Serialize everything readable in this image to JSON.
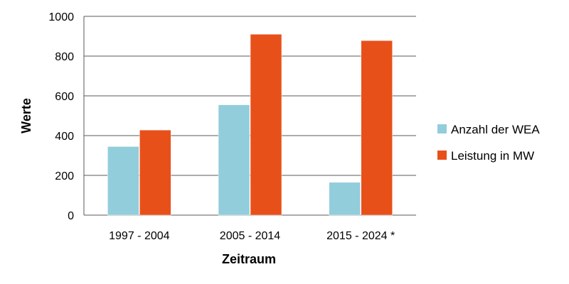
{
  "chart_data": {
    "type": "bar",
    "categories": [
      "1997 - 2004",
      "2005 - 2014",
      "2015 - 2024 *"
    ],
    "series": [
      {
        "name": "Anzahl der WEA",
        "values": [
          345,
          555,
          165
        ],
        "color": "#92cddc"
      },
      {
        "name": "Leistung in MW",
        "values": [
          428,
          910,
          878
        ],
        "color": "#e8501a"
      }
    ],
    "title": "",
    "xlabel": "Zeitraum",
    "ylabel": "Werte",
    "ylim": [
      0,
      1000
    ],
    "yticks": [
      0,
      200,
      400,
      600,
      800,
      1000
    ],
    "grid": true,
    "legend_position": "right"
  }
}
